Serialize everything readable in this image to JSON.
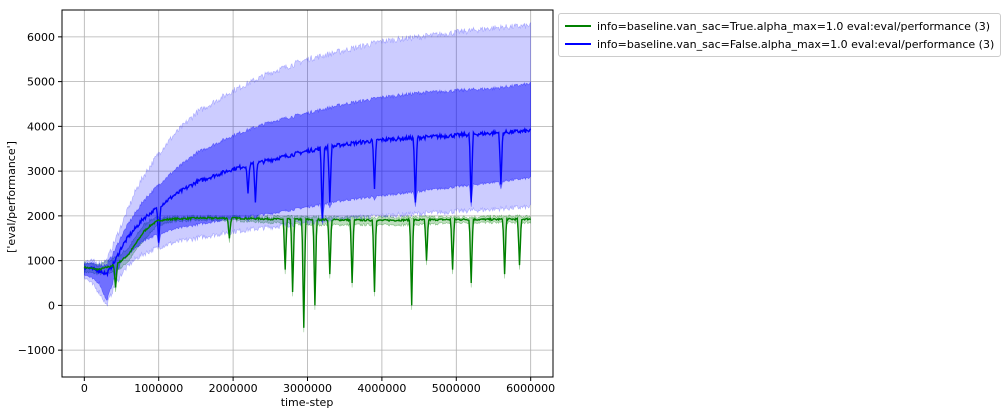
{
  "chart_data": {
    "type": "line",
    "xlabel": "time-step",
    "ylabel": "['eval/performance']",
    "xlim": [
      -300000,
      6300000
    ],
    "ylim": [
      -1600,
      6600
    ],
    "xticks": [
      0,
      1000000,
      2000000,
      3000000,
      4000000,
      5000000,
      6000000
    ],
    "xtick_labels": [
      "0",
      "1000000",
      "2000000",
      "3000000",
      "4000000",
      "5000000",
      "6000000"
    ],
    "yticks": [
      -1000,
      0,
      1000,
      2000,
      3000,
      4000,
      5000,
      6000
    ],
    "ytick_labels": [
      "−1000",
      "0",
      "1000",
      "2000",
      "3000",
      "4000",
      "5000",
      "6000"
    ],
    "grid": true,
    "legend_position": "outside top-right",
    "series": [
      {
        "name": "info=baseline.van_sac=True.alpha_max=1.0 eval:eval/performance (3)",
        "color": "#008000",
        "x": [
          0,
          200000,
          400000,
          500000,
          600000,
          700000,
          800000,
          900000,
          1000000,
          1200000,
          1500000,
          2000000,
          2500000,
          3000000,
          3500000,
          4000000,
          4500000,
          5000000,
          5500000,
          6000000
        ],
        "mean": [
          850,
          800,
          900,
          1000,
          1150,
          1400,
          1650,
          1800,
          1900,
          1930,
          1950,
          1950,
          1930,
          1920,
          1910,
          1900,
          1910,
          1920,
          1920,
          1930
        ],
        "std_low": [
          750,
          700,
          750,
          850,
          1000,
          1250,
          1450,
          1650,
          1800,
          1880,
          1900,
          1900,
          1850,
          1800,
          1800,
          1800,
          1800,
          1850,
          1850,
          1850
        ],
        "std_high": [
          950,
          900,
          1050,
          1150,
          1300,
          1550,
          1800,
          1920,
          1960,
          1970,
          1980,
          1980,
          1980,
          1970,
          1970,
          1970,
          1970,
          1970,
          1980,
          1990
        ],
        "dips": [
          [
            420000,
            400
          ],
          [
            1950000,
            1500
          ],
          [
            2700000,
            800
          ],
          [
            2800000,
            300
          ],
          [
            2950000,
            -500
          ],
          [
            3100000,
            0
          ],
          [
            3300000,
            700
          ],
          [
            3600000,
            500
          ],
          [
            3900000,
            300
          ],
          [
            4400000,
            0
          ],
          [
            4600000,
            1000
          ],
          [
            4950000,
            800
          ],
          [
            5200000,
            500
          ],
          [
            5650000,
            700
          ],
          [
            5850000,
            900
          ]
        ]
      },
      {
        "name": "info=baseline.van_sac=False.alpha_max=1.0 eval:eval/performance (3)",
        "color": "#0000ff",
        "x": [
          0,
          200000,
          300000,
          400000,
          500000,
          600000,
          700000,
          800000,
          1000000,
          1200000,
          1500000,
          2000000,
          2500000,
          3000000,
          3500000,
          4000000,
          4500000,
          5000000,
          5500000,
          6000000
        ],
        "mean": [
          850,
          780,
          700,
          950,
          1300,
          1550,
          1750,
          1950,
          2200,
          2450,
          2750,
          3050,
          3250,
          3450,
          3600,
          3700,
          3750,
          3800,
          3850,
          3900
        ],
        "std_low": [
          700,
          500,
          100,
          600,
          1000,
          1150,
          1300,
          1450,
          1600,
          1700,
          1800,
          1950,
          2050,
          2200,
          2350,
          2450,
          2550,
          2650,
          2750,
          2850
        ],
        "std_high": [
          950,
          900,
          900,
          1200,
          1550,
          1850,
          2100,
          2350,
          2700,
          3000,
          3400,
          3800,
          4100,
          4300,
          4500,
          4650,
          4750,
          4800,
          4850,
          4950
        ],
        "minmax_low": [
          650,
          300,
          0,
          400,
          700,
          900,
          1050,
          1150,
          1300,
          1400,
          1500,
          1650,
          1750,
          1850,
          1950,
          2000,
          2050,
          2100,
          2150,
          2200
        ],
        "minmax_high": [
          1000,
          950,
          1000,
          1400,
          1800,
          2200,
          2600,
          2900,
          3400,
          3800,
          4300,
          4800,
          5200,
          5500,
          5700,
          5900,
          6000,
          6100,
          6200,
          6250
        ],
        "dips": [
          [
            1000000,
            1400
          ],
          [
            2200000,
            2500
          ],
          [
            2300000,
            2300
          ],
          [
            3200000,
            1900
          ],
          [
            3300000,
            2300
          ],
          [
            3900000,
            2600
          ],
          [
            4450000,
            2300
          ],
          [
            5200000,
            2300
          ],
          [
            5600000,
            2700
          ]
        ]
      }
    ]
  }
}
